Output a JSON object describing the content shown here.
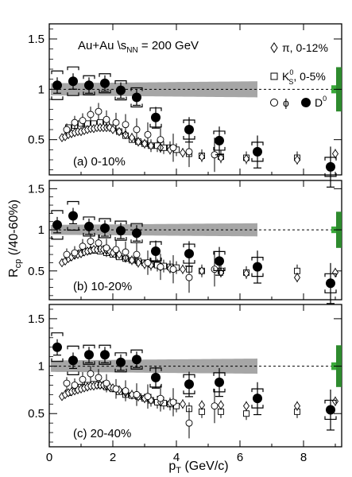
{
  "figure": {
    "ylabel": "R",
    "ylabel_sub": "cp",
    "ylabel_tail": " (/40-60%)",
    "xlabel": "p",
    "xlabel_sub": "T",
    "xlabel_tail": " (GeV/c)",
    "title_line": {
      "prefix": "Au+Au ",
      "sqrt": "\\",
      "s": "s",
      "s_sub": "NN",
      "suffix": " = 200 GeV"
    }
  },
  "legend": [
    {
      "marker": "diamond",
      "text": "π, 0-12%"
    },
    {
      "marker": "square",
      "text": "K",
      "sup": "0",
      "sub": "S",
      "tail": ", 0-5%"
    },
    {
      "marker": "circle",
      "text": "ϕ"
    },
    {
      "marker": "filled",
      "text": "D",
      "sup": "0"
    }
  ],
  "chart_data": [
    {
      "type": "scatter",
      "panel_label": "(a)  0-10%",
      "xlim": [
        0,
        9.2
      ],
      "ylim": [
        0.15,
        1.65
      ],
      "xticks": [
        0,
        2,
        4,
        6,
        8
      ],
      "yticks": [
        0.5,
        1,
        1.5
      ],
      "reference_line": 1.0,
      "d0": {
        "x": [
          0.25,
          0.75,
          1.25,
          1.75,
          2.25,
          2.75,
          3.35,
          4.4,
          5.35,
          6.55,
          8.85
        ],
        "y": [
          1.04,
          1.08,
          1.04,
          1.06,
          0.99,
          0.92,
          0.72,
          0.6,
          0.49,
          0.38,
          0.23
        ]
      },
      "pi": {
        "x": [
          0.4,
          0.5,
          0.6,
          0.7,
          0.8,
          0.9,
          1.0,
          1.1,
          1.2,
          1.3,
          1.4,
          1.5,
          1.6,
          1.7,
          1.8,
          1.9,
          2.0,
          2.2,
          2.4,
          2.6,
          2.8,
          3.0,
          3.2,
          3.5,
          3.8,
          4.2,
          4.8,
          5.4,
          6.2,
          7.8,
          9.0
        ],
        "y": [
          0.52,
          0.53,
          0.55,
          0.56,
          0.57,
          0.58,
          0.58,
          0.59,
          0.6,
          0.61,
          0.61,
          0.62,
          0.62,
          0.62,
          0.62,
          0.62,
          0.6,
          0.58,
          0.55,
          0.52,
          0.48,
          0.46,
          0.44,
          0.42,
          0.4,
          0.37,
          0.33,
          0.32,
          0.31,
          0.3,
          0.36
        ]
      },
      "k0s": {
        "x": [
          0.6,
          0.8,
          1.0,
          1.2,
          1.4,
          1.6,
          1.8,
          2.0,
          2.2,
          2.4,
          2.6,
          2.8,
          3.0,
          3.2,
          3.4,
          3.6,
          3.8,
          4.0,
          4.4,
          4.8,
          5.4,
          6.2,
          7.8
        ],
        "y": [
          0.62,
          0.64,
          0.66,
          0.66,
          0.66,
          0.67,
          0.65,
          0.62,
          0.58,
          0.54,
          0.5,
          0.48,
          0.46,
          0.44,
          0.44,
          0.42,
          0.42,
          0.4,
          0.36,
          0.34,
          0.33,
          0.32,
          0.32
        ]
      },
      "phi": {
        "x": [
          0.55,
          0.8,
          1.05,
          1.3,
          1.55,
          1.8,
          2.1,
          2.4,
          2.75,
          3.1,
          3.5,
          3.9,
          4.4,
          5.2
        ],
        "y": [
          0.6,
          0.67,
          0.69,
          0.75,
          0.78,
          0.7,
          0.67,
          0.65,
          0.6,
          0.55,
          0.5,
          0.42,
          0.38,
          0.35
        ]
      }
    },
    {
      "type": "scatter",
      "panel_label": "(b)  10-20%",
      "xlim": [
        0,
        9.2
      ],
      "ylim": [
        0.15,
        1.6
      ],
      "xticks": [
        0,
        2,
        4,
        6,
        8
      ],
      "yticks": [
        0.5,
        1,
        1.5
      ],
      "reference_line": 1.0,
      "d0": {
        "x": [
          0.25,
          0.75,
          1.25,
          1.75,
          2.25,
          2.75,
          3.35,
          4.4,
          5.35,
          6.55,
          8.85
        ],
        "y": [
          1.06,
          1.17,
          1.04,
          1.02,
          0.99,
          0.96,
          0.74,
          0.71,
          0.62,
          0.55,
          0.35
        ]
      },
      "pi": {
        "x": [
          0.4,
          0.5,
          0.6,
          0.7,
          0.8,
          0.9,
          1.0,
          1.1,
          1.2,
          1.3,
          1.4,
          1.5,
          1.6,
          1.7,
          1.8,
          1.9,
          2.0,
          2.2,
          2.4,
          2.6,
          2.8,
          3.0,
          3.2,
          3.5,
          3.8,
          4.2,
          4.8,
          5.4,
          6.2,
          7.8,
          9.0
        ],
        "y": [
          0.6,
          0.62,
          0.65,
          0.67,
          0.69,
          0.7,
          0.71,
          0.73,
          0.74,
          0.75,
          0.76,
          0.76,
          0.77,
          0.76,
          0.75,
          0.74,
          0.72,
          0.7,
          0.66,
          0.63,
          0.6,
          0.58,
          0.57,
          0.55,
          0.53,
          0.52,
          0.5,
          0.48,
          0.47,
          0.42,
          0.48
        ]
      },
      "k0s": {
        "x": [
          0.6,
          0.8,
          1.0,
          1.2,
          1.4,
          1.6,
          1.8,
          2.0,
          2.2,
          2.4,
          2.6,
          2.8,
          3.0,
          3.2,
          3.4,
          3.6,
          3.8,
          4.0,
          4.4,
          4.8,
          5.4,
          6.2,
          7.8
        ],
        "y": [
          0.66,
          0.7,
          0.72,
          0.74,
          0.75,
          0.74,
          0.72,
          0.7,
          0.67,
          0.65,
          0.63,
          0.62,
          0.6,
          0.58,
          0.57,
          0.56,
          0.55,
          0.54,
          0.52,
          0.5,
          0.5,
          0.48,
          0.5
        ]
      },
      "phi": {
        "x": [
          0.55,
          0.8,
          1.05,
          1.3,
          1.55,
          1.8,
          2.1,
          2.4,
          2.75,
          3.1,
          3.5,
          3.9,
          4.4,
          5.2
        ],
        "y": [
          0.7,
          0.72,
          0.8,
          0.86,
          0.84,
          0.78,
          0.76,
          0.73,
          0.7,
          0.6,
          0.55,
          0.52,
          0.42,
          0.52
        ]
      }
    },
    {
      "type": "scatter",
      "panel_label": "(c)  20-40%",
      "xlim": [
        0,
        9.2
      ],
      "ylim": [
        0.15,
        1.65
      ],
      "xticks": [
        0,
        2,
        4,
        6,
        8
      ],
      "yticks": [
        0.5,
        1,
        1.5
      ],
      "reference_line": 1.0,
      "d0": {
        "x": [
          0.25,
          0.75,
          1.25,
          1.75,
          2.25,
          2.75,
          3.35,
          4.4,
          5.35,
          6.55,
          8.85
        ],
        "y": [
          1.2,
          1.06,
          1.12,
          1.12,
          1.04,
          1.07,
          0.88,
          0.81,
          0.83,
          0.66,
          0.54
        ]
      },
      "pi": {
        "x": [
          0.4,
          0.5,
          0.6,
          0.7,
          0.8,
          0.9,
          1.0,
          1.1,
          1.2,
          1.3,
          1.4,
          1.5,
          1.6,
          1.7,
          1.8,
          1.9,
          2.0,
          2.2,
          2.4,
          2.6,
          2.8,
          3.0,
          3.2,
          3.5,
          3.8,
          4.2,
          4.8,
          5.4,
          6.2,
          7.8,
          9.0
        ],
        "y": [
          0.68,
          0.7,
          0.72,
          0.73,
          0.74,
          0.75,
          0.76,
          0.77,
          0.78,
          0.79,
          0.79,
          0.8,
          0.8,
          0.8,
          0.79,
          0.78,
          0.77,
          0.75,
          0.72,
          0.7,
          0.68,
          0.66,
          0.64,
          0.62,
          0.61,
          0.6,
          0.59,
          0.59,
          0.58,
          0.58,
          0.63
        ]
      },
      "k0s": {
        "x": [
          0.6,
          0.8,
          1.0,
          1.2,
          1.4,
          1.6,
          1.8,
          2.0,
          2.2,
          2.4,
          2.6,
          2.8,
          3.0,
          3.2,
          3.4,
          3.6,
          3.8,
          4.0,
          4.4,
          4.8,
          5.4,
          6.2,
          7.8
        ],
        "y": [
          0.72,
          0.75,
          0.78,
          0.8,
          0.81,
          0.8,
          0.78,
          0.76,
          0.73,
          0.7,
          0.69,
          0.68,
          0.66,
          0.64,
          0.62,
          0.61,
          0.6,
          0.58,
          0.55,
          0.52,
          0.52,
          0.5,
          0.52
        ]
      },
      "phi": {
        "x": [
          0.55,
          0.8,
          1.05,
          1.3,
          1.55,
          1.8,
          2.1,
          2.4,
          2.75,
          3.1,
          3.5,
          3.9,
          4.4,
          5.2
        ],
        "y": [
          0.82,
          0.8,
          0.86,
          0.92,
          0.88,
          0.82,
          0.76,
          0.74,
          0.7,
          0.68,
          0.66,
          0.62,
          0.4,
          0.58
        ]
      }
    }
  ],
  "colors": {
    "band": "#a6a6a6",
    "norm_green": "#3aaa3a",
    "norm_green_dark": "#2e8b2e"
  }
}
